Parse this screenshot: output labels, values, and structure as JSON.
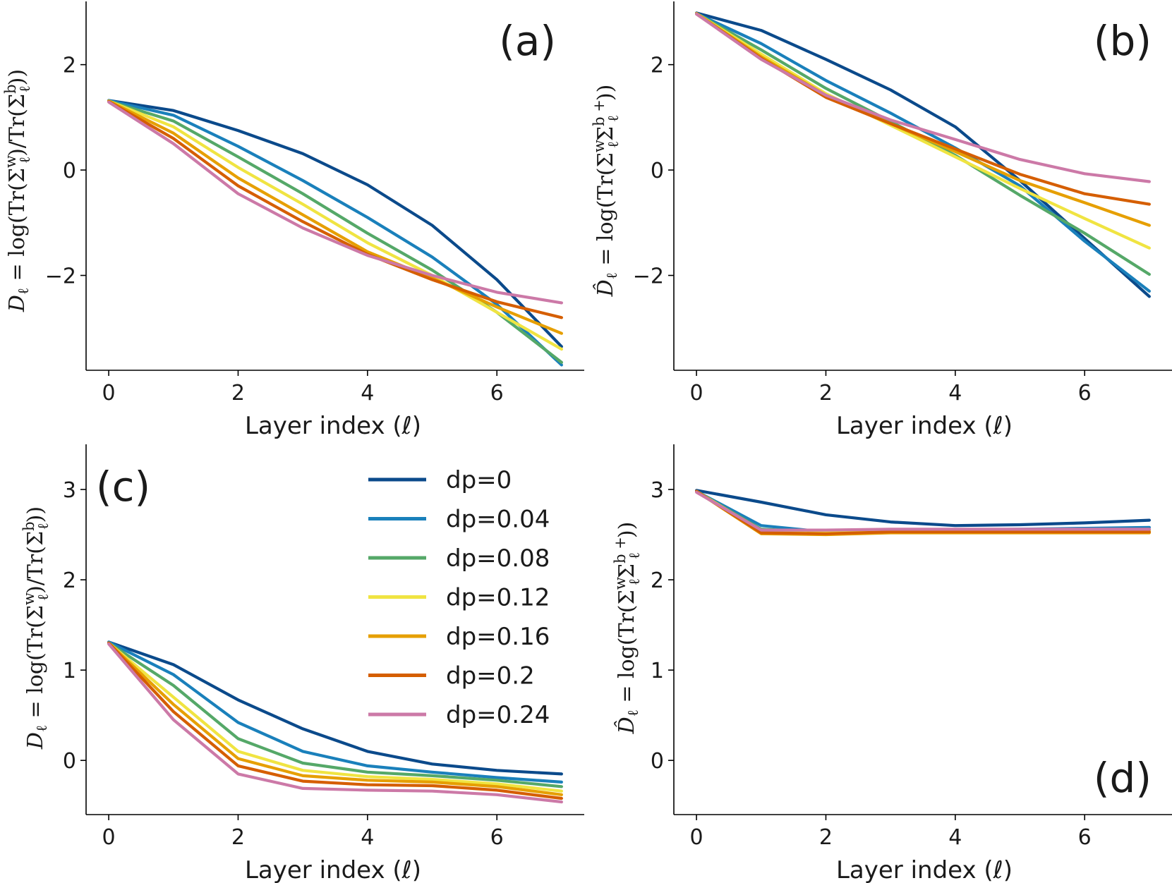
{
  "figure": {
    "xlabel": "Layer index (ℓ)",
    "ylabel_D_prefix": "D",
    "ylabel_D_rest": " = log(Tr(Σ",
    "ylabel_D_mid": ")/Tr(Σ",
    "ylabel_D_end": "))",
    "ylabel_Dhat_prefix": "D̂",
    "ylabel_Dhat_rest": " = log(Tr(Σ",
    "ylabel_Dhat_mid": "Σ",
    "ylabel_Dhat_end": "))",
    "sub_l": "ℓ",
    "sup_w": "w",
    "sup_b": "b",
    "sup_bplus": "b +"
  },
  "chart_data": [
    {
      "panel": "(a)",
      "type": "line",
      "x": [
        0,
        1,
        2,
        3,
        4,
        5,
        6,
        7
      ],
      "xlim": [
        -0.35,
        7.35
      ],
      "ylim": [
        -3.8,
        3.2
      ],
      "xticks": [
        0,
        2,
        4,
        6
      ],
      "yticks": [
        -2,
        0,
        2
      ],
      "label_pos": "top-right",
      "series": [
        {
          "name": "dp=0",
          "values": [
            1.32,
            1.13,
            0.75,
            0.31,
            -0.28,
            -1.05,
            -2.08,
            -3.35
          ]
        },
        {
          "name": "dp=0.04",
          "values": [
            1.32,
            1.04,
            0.45,
            -0.2,
            -0.9,
            -1.65,
            -2.55,
            -3.7
          ]
        },
        {
          "name": "dp=0.08",
          "values": [
            1.31,
            0.93,
            0.25,
            -0.45,
            -1.2,
            -1.9,
            -2.7,
            -3.65
          ]
        },
        {
          "name": "dp=0.12",
          "values": [
            1.31,
            0.82,
            0.05,
            -0.65,
            -1.38,
            -2.0,
            -2.7,
            -3.4
          ]
        },
        {
          "name": "dp=0.16",
          "values": [
            1.31,
            0.7,
            -0.15,
            -0.85,
            -1.55,
            -2.05,
            -2.6,
            -3.1
          ]
        },
        {
          "name": "dp=0.2",
          "values": [
            1.3,
            0.6,
            -0.3,
            -0.98,
            -1.6,
            -2.08,
            -2.5,
            -2.8
          ]
        },
        {
          "name": "dp=0.24",
          "values": [
            1.29,
            0.5,
            -0.45,
            -1.1,
            -1.62,
            -2.0,
            -2.32,
            -2.52
          ]
        }
      ]
    },
    {
      "panel": "(b)",
      "type": "line",
      "x": [
        0,
        1,
        2,
        3,
        4,
        5,
        6,
        7
      ],
      "xlim": [
        -0.35,
        7.35
      ],
      "ylim": [
        -3.8,
        3.2
      ],
      "xticks": [
        0,
        2,
        4,
        6
      ],
      "yticks": [
        -2,
        0,
        2
      ],
      "label_pos": "top-right",
      "series": [
        {
          "name": "dp=0",
          "values": [
            2.98,
            2.65,
            2.1,
            1.52,
            0.82,
            -0.2,
            -1.3,
            -2.4
          ]
        },
        {
          "name": "dp=0.04",
          "values": [
            2.97,
            2.4,
            1.7,
            1.08,
            0.42,
            -0.3,
            -1.35,
            -2.3
          ]
        },
        {
          "name": "dp=0.08",
          "values": [
            2.97,
            2.28,
            1.55,
            0.92,
            0.28,
            -0.48,
            -1.2,
            -1.98
          ]
        },
        {
          "name": "dp=0.12",
          "values": [
            2.97,
            2.2,
            1.45,
            0.85,
            0.25,
            -0.35,
            -0.92,
            -1.48
          ]
        },
        {
          "name": "dp=0.16",
          "values": [
            2.97,
            2.15,
            1.42,
            0.88,
            0.35,
            -0.2,
            -0.62,
            -1.05
          ]
        },
        {
          "name": "dp=0.2",
          "values": [
            2.96,
            2.12,
            1.38,
            0.88,
            0.4,
            -0.08,
            -0.45,
            -0.65
          ]
        },
        {
          "name": "dp=0.24",
          "values": [
            2.96,
            2.1,
            1.42,
            0.95,
            0.58,
            0.2,
            -0.07,
            -0.22
          ]
        }
      ]
    },
    {
      "panel": "(c)",
      "type": "line",
      "x": [
        0,
        1,
        2,
        3,
        4,
        5,
        6,
        7
      ],
      "xlim": [
        -0.35,
        7.35
      ],
      "ylim": [
        -0.6,
        3.5
      ],
      "xticks": [
        0,
        2,
        4,
        6
      ],
      "yticks": [
        0,
        1,
        2,
        3
      ],
      "label_pos": "top-left",
      "legend": "upper-middle",
      "series": [
        {
          "name": "dp=0",
          "values": [
            1.31,
            1.06,
            0.67,
            0.35,
            0.1,
            -0.04,
            -0.11,
            -0.15
          ]
        },
        {
          "name": "dp=0.04",
          "values": [
            1.31,
            0.95,
            0.42,
            0.1,
            -0.06,
            -0.13,
            -0.19,
            -0.24
          ]
        },
        {
          "name": "dp=0.08",
          "values": [
            1.3,
            0.83,
            0.24,
            -0.03,
            -0.13,
            -0.17,
            -0.22,
            -0.29
          ]
        },
        {
          "name": "dp=0.12",
          "values": [
            1.3,
            0.7,
            0.1,
            -0.11,
            -0.18,
            -0.21,
            -0.26,
            -0.34
          ]
        },
        {
          "name": "dp=0.16",
          "values": [
            1.3,
            0.62,
            0.02,
            -0.17,
            -0.22,
            -0.24,
            -0.29,
            -0.38
          ]
        },
        {
          "name": "dp=0.2",
          "values": [
            1.3,
            0.54,
            -0.06,
            -0.23,
            -0.27,
            -0.28,
            -0.33,
            -0.42
          ]
        },
        {
          "name": "dp=0.24",
          "values": [
            1.29,
            0.45,
            -0.15,
            -0.31,
            -0.33,
            -0.34,
            -0.38,
            -0.46
          ]
        }
      ]
    },
    {
      "panel": "(d)",
      "type": "line",
      "x": [
        0,
        1,
        2,
        3,
        4,
        5,
        6,
        7
      ],
      "xlim": [
        -0.35,
        7.35
      ],
      "ylim": [
        -0.6,
        3.5
      ],
      "xticks": [
        0,
        2,
        4,
        6
      ],
      "yticks": [
        0,
        1,
        2,
        3
      ],
      "label_pos": "bottom-right",
      "series": [
        {
          "name": "dp=0",
          "values": [
            2.99,
            2.86,
            2.72,
            2.64,
            2.6,
            2.61,
            2.63,
            2.66
          ]
        },
        {
          "name": "dp=0.04",
          "values": [
            2.98,
            2.6,
            2.53,
            2.54,
            2.55,
            2.56,
            2.57,
            2.58
          ]
        },
        {
          "name": "dp=0.08",
          "values": [
            2.98,
            2.56,
            2.53,
            2.54,
            2.54,
            2.54,
            2.55,
            2.55
          ]
        },
        {
          "name": "dp=0.12",
          "values": [
            2.98,
            2.54,
            2.52,
            2.53,
            2.53,
            2.53,
            2.53,
            2.54
          ]
        },
        {
          "name": "dp=0.16",
          "values": [
            2.98,
            2.51,
            2.5,
            2.52,
            2.52,
            2.52,
            2.52,
            2.52
          ]
        },
        {
          "name": "dp=0.2",
          "values": [
            2.98,
            2.52,
            2.51,
            2.53,
            2.53,
            2.53,
            2.53,
            2.53
          ]
        },
        {
          "name": "dp=0.24",
          "values": [
            2.97,
            2.55,
            2.55,
            2.56,
            2.56,
            2.56,
            2.56,
            2.56
          ]
        }
      ]
    }
  ],
  "colors": [
    "#0b4a8b",
    "#1a80bb",
    "#55a868",
    "#f0e442",
    "#e69f00",
    "#d55e00",
    "#cc79a7"
  ]
}
